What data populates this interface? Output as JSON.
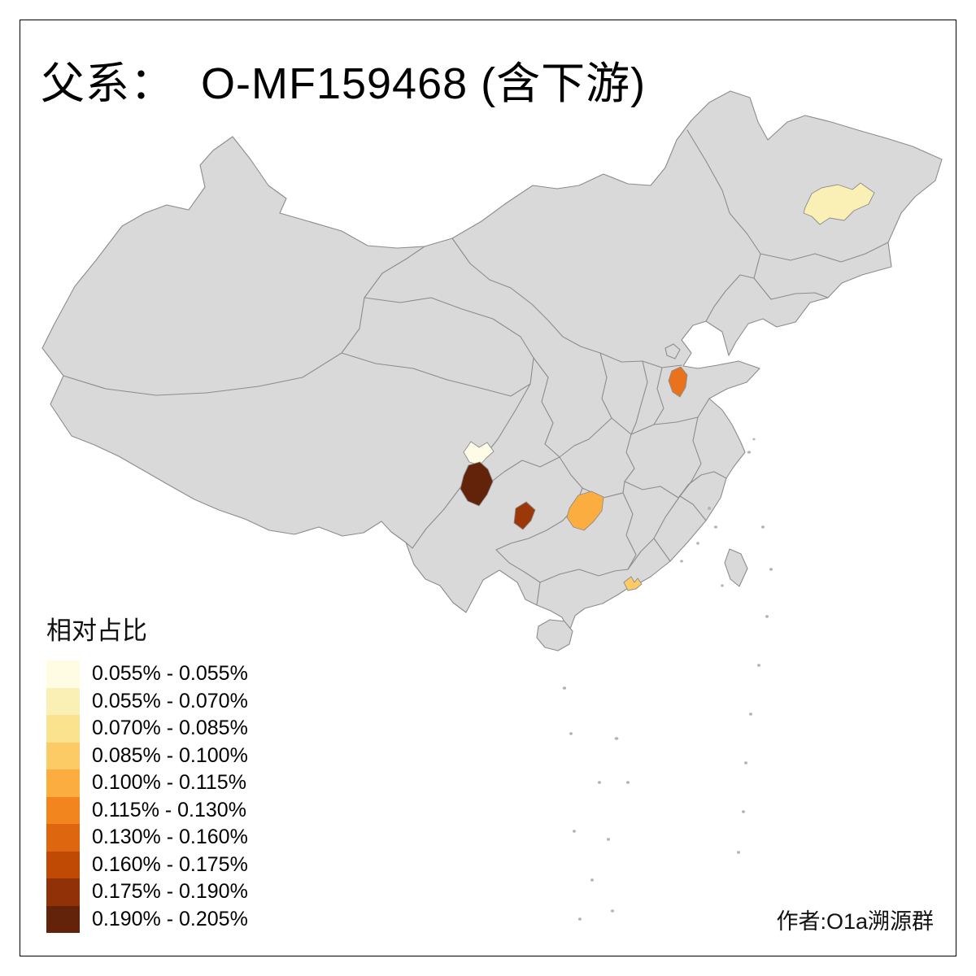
{
  "title": {
    "text": "父系：  O-MF159468 (含下游)"
  },
  "credit": {
    "text": "作者:O1a溯源群"
  },
  "legend": {
    "title": "相对占比",
    "items": [
      {
        "color": "#FFFCE3",
        "label": "0.055% - 0.055%"
      },
      {
        "color": "#FAF0B6",
        "label": "0.055% - 0.070%"
      },
      {
        "color": "#FBE28E",
        "label": "0.070% - 0.085%"
      },
      {
        "color": "#FDCB66",
        "label": "0.085% - 0.100%"
      },
      {
        "color": "#FCAD3F",
        "label": "0.100% - 0.115%"
      },
      {
        "color": "#F3851F",
        "label": "0.115% - 0.130%"
      },
      {
        "color": "#DD660F",
        "label": "0.130% - 0.160%"
      },
      {
        "color": "#C04A04",
        "label": "0.160% - 0.175%"
      },
      {
        "color": "#903108",
        "label": "0.175% - 0.190%"
      },
      {
        "color": "#63230B",
        "label": "0.190% - 0.205%"
      }
    ]
  },
  "map": {
    "land_fill": "#D9D9D9",
    "border_stroke": "#8C8C8C",
    "sea_fill": "#FFFFFF"
  },
  "regions": {
    "harbin": {
      "color": "#FAF0B6",
      "range": "0.055% - 0.070%"
    },
    "shandong": {
      "color": "#E8731C",
      "range": "0.115% - 0.130%"
    },
    "nw_sichuan": {
      "color": "#FEFBE7",
      "range": "0.055% - 0.055%"
    },
    "w_sichuan": {
      "color": "#63230B",
      "range": "0.190% - 0.205%"
    },
    "s_sichuan": {
      "color": "#9B3708",
      "range": "0.175% - 0.190%"
    },
    "w_hunan": {
      "color": "#FCAD3F",
      "range": "0.100% - 0.115%"
    },
    "pearl_delta": {
      "color": "#FDCB66",
      "range": "0.085% - 0.100%"
    }
  },
  "map_data": {
    "type": "choropleth",
    "title": "父系： O-MF159468 (含下游)",
    "legend_title": "相对占比",
    "class_breaks_percent": [
      0.055,
      0.055,
      0.07,
      0.085,
      0.1,
      0.115,
      0.13,
      0.16,
      0.175,
      0.19,
      0.205
    ],
    "highlighted_regions": [
      {
        "location": "heilongjiang-harbin-area",
        "value_range": "0.055% - 0.070%",
        "color": "#FAF0B6"
      },
      {
        "location": "west-shandong",
        "value_range": "0.115% - 0.130%",
        "color": "#E8731C"
      },
      {
        "location": "northwest-sichuan",
        "value_range": "0.055% - 0.055%",
        "color": "#FEFBE7"
      },
      {
        "location": "west-sichuan",
        "value_range": "0.190% - 0.205%",
        "color": "#63230B"
      },
      {
        "location": "south-sichuan",
        "value_range": "0.175% - 0.190%",
        "color": "#9B3708"
      },
      {
        "location": "northwest-hunan",
        "value_range": "0.100% - 0.115%",
        "color": "#FCAD3F"
      },
      {
        "location": "pearl-river-delta-guangdong",
        "value_range": "0.085% - 0.100%",
        "color": "#FDCB66"
      }
    ]
  }
}
